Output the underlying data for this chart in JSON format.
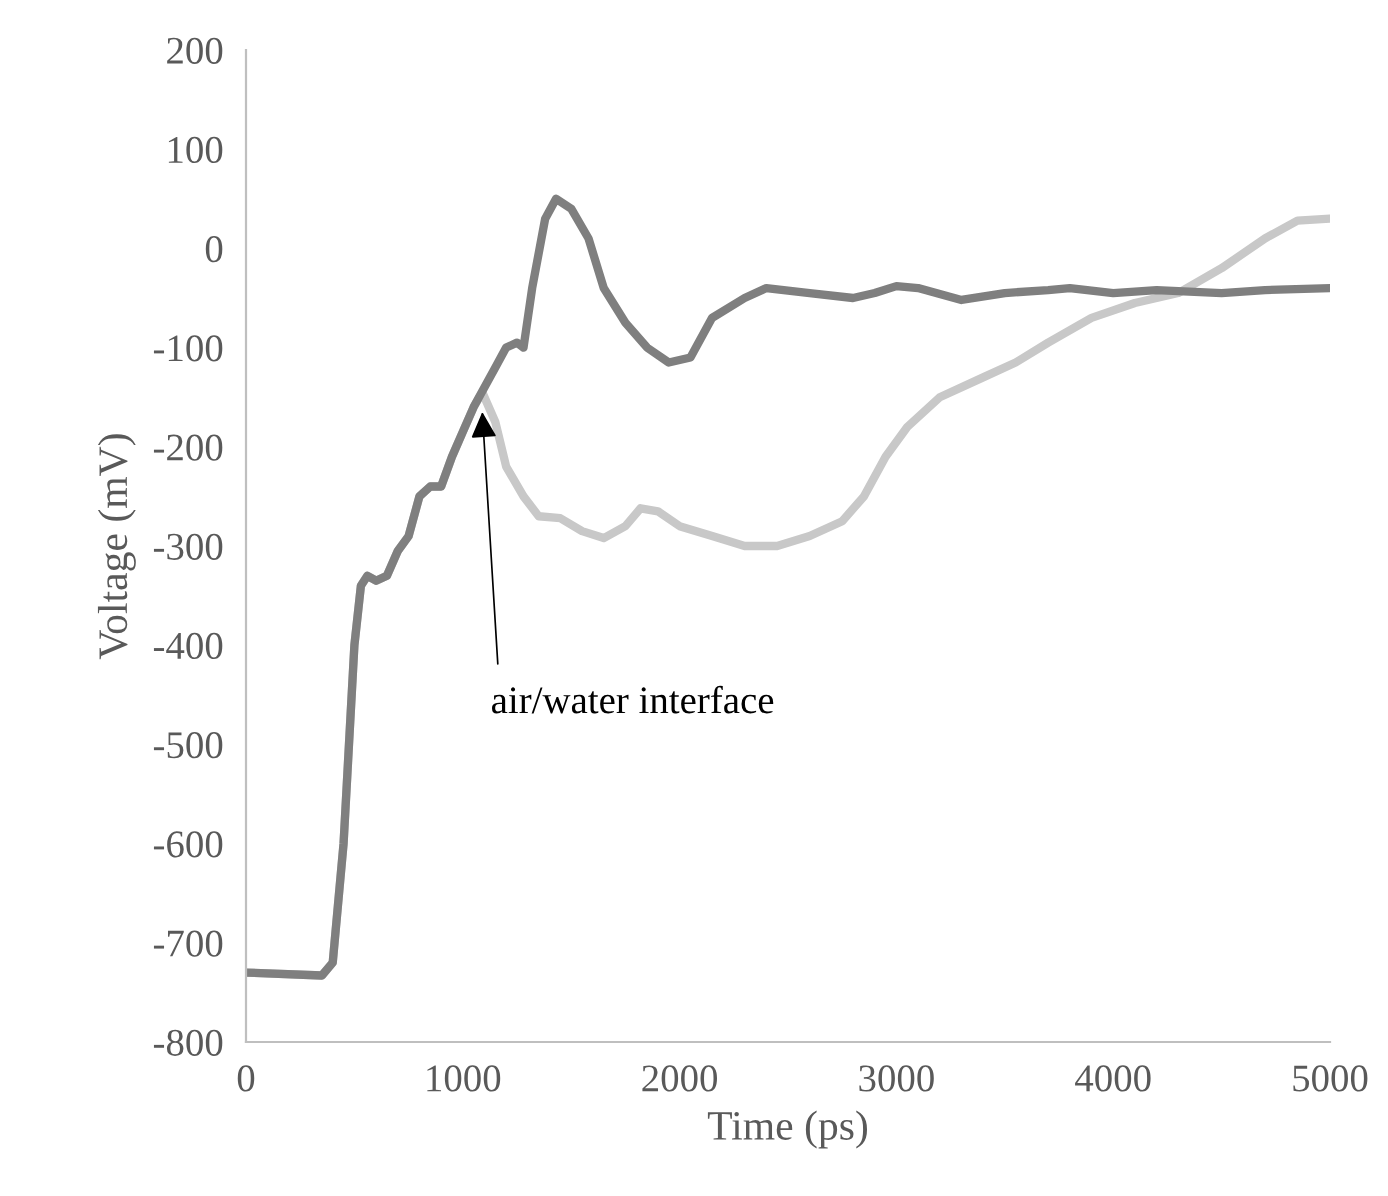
{
  "chart_data": {
    "type": "line",
    "xlabel": "Time (ps)",
    "ylabel": "Voltage (mV)",
    "xlim": [
      0,
      5000
    ],
    "xticks": [
      0,
      1000,
      2000,
      3000,
      4000,
      5000
    ],
    "ylim": [
      -800,
      200
    ],
    "yticks": [
      -800,
      -700,
      -600,
      -500,
      -400,
      -300,
      -200,
      -100,
      0,
      100,
      200
    ],
    "grid": false,
    "legend": false,
    "series": [
      {
        "color": "#c8c8c8",
        "x": [
          0,
          350,
          400,
          450,
          500,
          530,
          560,
          600,
          650,
          700,
          750,
          800,
          850,
          900,
          950,
          1000,
          1050,
          1090,
          1150,
          1200,
          1280,
          1350,
          1450,
          1550,
          1650,
          1750,
          1820,
          1900,
          2000,
          2150,
          2300,
          2450,
          2600,
          2750,
          2850,
          2950,
          3050,
          3200,
          3400,
          3550,
          3700,
          3900,
          4100,
          4300,
          4500,
          4700,
          4850,
          5000
        ],
        "values": [
          -730,
          -733,
          -720,
          -600,
          -400,
          -340,
          -330,
          -335,
          -330,
          -305,
          -290,
          -250,
          -240,
          -240,
          -210,
          -185,
          -160,
          -145,
          -175,
          -220,
          -250,
          -270,
          -272,
          -285,
          -292,
          -280,
          -262,
          -265,
          -280,
          -290,
          -300,
          -300,
          -290,
          -275,
          -250,
          -210,
          -180,
          -150,
          -130,
          -115,
          -95,
          -70,
          -55,
          -45,
          -20,
          10,
          28,
          30
        ]
      },
      {
        "color": "#7f7f7f",
        "x": [
          0,
          350,
          400,
          450,
          500,
          530,
          560,
          600,
          650,
          700,
          750,
          800,
          850,
          900,
          950,
          1000,
          1050,
          1100,
          1150,
          1200,
          1250,
          1280,
          1320,
          1380,
          1430,
          1500,
          1580,
          1650,
          1750,
          1850,
          1950,
          2050,
          2150,
          2300,
          2400,
          2600,
          2800,
          2900,
          3000,
          3100,
          3300,
          3500,
          3700,
          3800,
          4000,
          4200,
          4500,
          4700,
          5000
        ],
        "values": [
          -730,
          -733,
          -720,
          -600,
          -400,
          -340,
          -330,
          -335,
          -330,
          -305,
          -290,
          -250,
          -240,
          -240,
          -210,
          -185,
          -160,
          -140,
          -120,
          -100,
          -95,
          -100,
          -40,
          30,
          50,
          40,
          10,
          -40,
          -75,
          -100,
          -115,
          -110,
          -70,
          -50,
          -40,
          -45,
          -50,
          -45,
          -38,
          -40,
          -52,
          -45,
          -42,
          -40,
          -45,
          -42,
          -45,
          -42,
          -40
        ]
      }
    ],
    "annotations": [
      {
        "text": "air/water interface",
        "x": 1090,
        "y": -165
      }
    ]
  }
}
